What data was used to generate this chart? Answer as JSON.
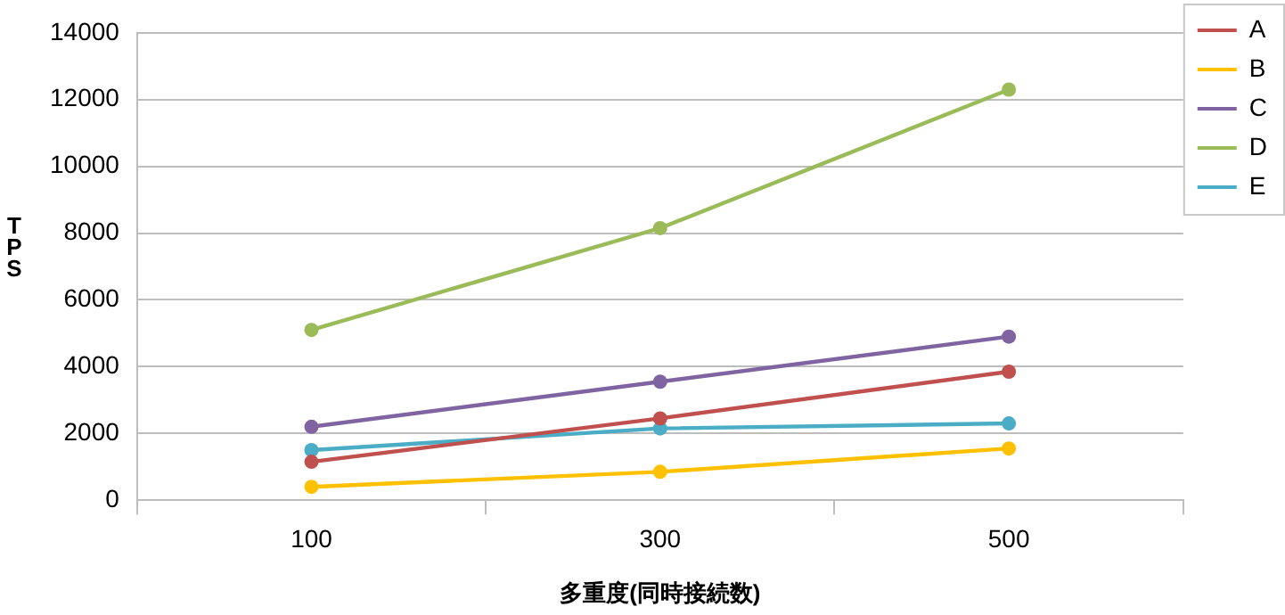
{
  "chart_data": {
    "type": "line",
    "xlabel": "多重度(同時接続数)",
    "ylabel": "TPS",
    "categories": [
      "100",
      "300",
      "500"
    ],
    "series": [
      {
        "name": "A",
        "color": "#c0504d",
        "values": [
          1150,
          2450,
          3850
        ]
      },
      {
        "name": "B",
        "color": "#ffc000",
        "values": [
          400,
          850,
          1550
        ]
      },
      {
        "name": "C",
        "color": "#8064a2",
        "values": [
          2200,
          3550,
          4900
        ]
      },
      {
        "name": "D",
        "color": "#9bbb59",
        "values": [
          5100,
          8150,
          12300
        ]
      },
      {
        "name": "E",
        "color": "#4bacc6",
        "values": [
          1500,
          2150,
          2300
        ]
      }
    ],
    "ylim": [
      0,
      14000
    ],
    "yticks": [
      0,
      2000,
      4000,
      6000,
      8000,
      10000,
      12000,
      14000
    ],
    "grid": "y",
    "legend": "top right",
    "marker": "circle",
    "line_style": "solid"
  }
}
